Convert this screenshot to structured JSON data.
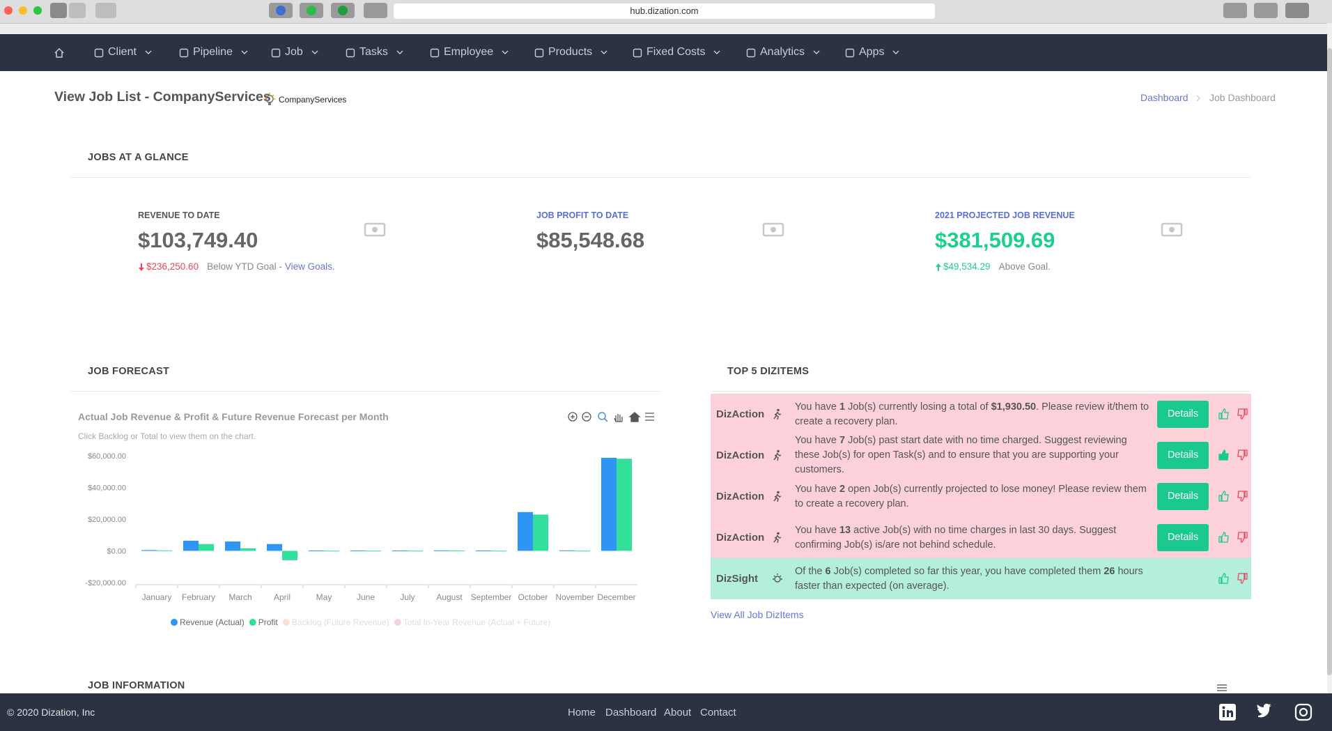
{
  "browser": {
    "url": "hub.dization.com"
  },
  "nav": [
    "Client",
    "Pipeline",
    "Job",
    "Tasks",
    "Employee",
    "Products",
    "Fixed Costs",
    "Analytics",
    "Apps"
  ],
  "header": {
    "title": "View Job List - CompanyServices",
    "company": "CompanyServices",
    "breadcrumb": [
      "Dashboard",
      "Job Dashboard"
    ]
  },
  "glance": {
    "heading": "JOBS AT A GLANCE",
    "cards": [
      {
        "label": "REVENUE TO DATE",
        "value": "$103,749.40",
        "delta": "$236,250.60",
        "note": "Below YTD Goal -",
        "link": "View Goals."
      },
      {
        "label": "JOB PROFIT TO DATE",
        "value": "$85,548.68"
      },
      {
        "label": "2021 PROJECTED JOB REVENUE",
        "value": "$381,509.69",
        "delta": "$49,534.29",
        "note": "Above Goal."
      }
    ]
  },
  "forecast": {
    "heading": "JOB FORECAST",
    "chart": {
      "type": "bar",
      "title": "Actual Job Revenue & Profit & Future Revenue Forecast per Month",
      "subtitle": "Click Backlog or Total to view them on the chart.",
      "categories": [
        "January",
        "February",
        "March",
        "April",
        "May",
        "June",
        "July",
        "August",
        "September",
        "October",
        "November",
        "December"
      ],
      "series": [
        {
          "name": "Revenue (Actual)",
          "color": "#2e96f2",
          "values": [
            500,
            6400,
            5900,
            4300,
            200,
            200,
            200,
            300,
            200,
            24500,
            300,
            58700
          ]
        },
        {
          "name": "Profit",
          "color": "#32e09b",
          "values": [
            300,
            4300,
            1600,
            -5900,
            100,
            100,
            100,
            200,
            100,
            22900,
            100,
            58100
          ]
        },
        {
          "name": "Backlog (Future Revenue)",
          "color": "#fbe0cf",
          "hidden": true
        },
        {
          "name": "Total In-Year Revenue (Actual + Future)",
          "color": "#f9d3d9",
          "hidden": true
        }
      ],
      "ylim": [
        -20000,
        60000
      ],
      "yticks": [
        {
          "value": -20000,
          "label": "-$20,000.00"
        },
        {
          "value": 0,
          "label": "$0.00"
        },
        {
          "value": 20000,
          "label": "$20,000.00"
        },
        {
          "value": 40000,
          "label": "$40,000.00"
        },
        {
          "value": 60000,
          "label": "$60,000.00"
        }
      ],
      "grid": false,
      "legend": "bottom"
    }
  },
  "dizitems": {
    "heading": "TOP 5 DIZITEMS",
    "link": "View All Job DizItems",
    "items": [
      {
        "kind": "DizAction",
        "parts": [
          "You have ",
          "1",
          " Job(s) currently losing a total of ",
          "$1,930.50",
          ". Please review it/them to create a recovery plan."
        ],
        "button": "Details"
      },
      {
        "kind": "DizAction",
        "parts": [
          "You have ",
          "7",
          " Job(s) past start date with no time charged. Suggest reviewing these Job(s) for open Task(s) and to ensure that you are supporting your customers."
        ],
        "button": "Details"
      },
      {
        "kind": "DizAction",
        "parts": [
          "You have ",
          "2",
          " open Job(s) currently projected to lose money! Please review them to create a recovery plan."
        ],
        "button": "Details"
      },
      {
        "kind": "DizAction",
        "parts": [
          "You have ",
          "13",
          " active Job(s) with no time charges in last 30 days. Suggest confirming Job(s) is/are not behind schedule."
        ],
        "button": "Details"
      },
      {
        "kind": "DizSight",
        "parts": [
          "Of the ",
          "6",
          " Job(s) completed so far this year, you have completed them ",
          "26",
          " hours faster than expected (on average)."
        ]
      }
    ]
  },
  "job_information": {
    "heading": "JOB INFORMATION"
  },
  "footer": {
    "copyright": "© 2020 Dization, Inc",
    "links": [
      "Home",
      "Dashboard",
      "About",
      "Contact"
    ]
  }
}
